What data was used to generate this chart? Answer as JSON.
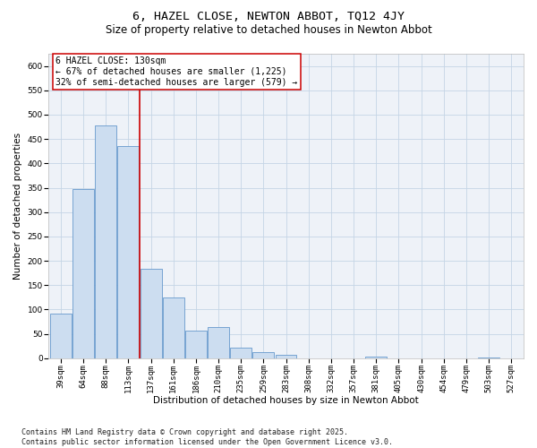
{
  "title": "6, HAZEL CLOSE, NEWTON ABBOT, TQ12 4JY",
  "subtitle": "Size of property relative to detached houses in Newton Abbot",
  "xlabel": "Distribution of detached houses by size in Newton Abbot",
  "ylabel": "Number of detached properties",
  "categories": [
    "39sqm",
    "64sqm",
    "88sqm",
    "113sqm",
    "137sqm",
    "161sqm",
    "186sqm",
    "210sqm",
    "235sqm",
    "259sqm",
    "283sqm",
    "308sqm",
    "332sqm",
    "357sqm",
    "381sqm",
    "405sqm",
    "430sqm",
    "454sqm",
    "479sqm",
    "503sqm",
    "527sqm"
  ],
  "values": [
    92,
    347,
    478,
    435,
    183,
    124,
    57,
    64,
    22,
    12,
    7,
    0,
    0,
    0,
    3,
    0,
    0,
    0,
    0,
    2,
    0
  ],
  "bar_color": "#ccddf0",
  "bar_edge_color": "#6699cc",
  "grid_color": "#c5d5e5",
  "background_color": "#eef2f8",
  "vline_x": 3.5,
  "vline_color": "#cc0000",
  "annotation_text": "6 HAZEL CLOSE: 130sqm\n← 67% of detached houses are smaller (1,225)\n32% of semi-detached houses are larger (579) →",
  "annotation_box_color": "white",
  "annotation_edge_color": "#cc0000",
  "footer_text": "Contains HM Land Registry data © Crown copyright and database right 2025.\nContains public sector information licensed under the Open Government Licence v3.0.",
  "ylim": [
    0,
    625
  ],
  "yticks": [
    0,
    50,
    100,
    150,
    200,
    250,
    300,
    350,
    400,
    450,
    500,
    550,
    600
  ],
  "title_fontsize": 9.5,
  "subtitle_fontsize": 8.5,
  "tick_fontsize": 6.5,
  "ylabel_fontsize": 7.5,
  "xlabel_fontsize": 7.5,
  "annotation_fontsize": 7,
  "footer_fontsize": 6
}
